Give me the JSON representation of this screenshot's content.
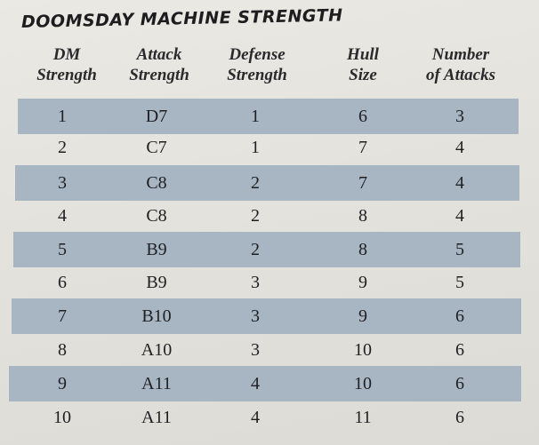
{
  "title": "DOOMSDAY MACHINE STRENGTH",
  "columns": [
    {
      "line1": "DM",
      "line2": "Strength"
    },
    {
      "line1": "Attack",
      "line2": "Strength"
    },
    {
      "line1": "Defense",
      "line2": "Strength"
    },
    {
      "line1": "Hull",
      "line2": "Size"
    },
    {
      "line1": "Number",
      "line2": "of Attacks"
    }
  ],
  "rows": [
    [
      "1",
      "D7",
      "1",
      "6",
      "3"
    ],
    [
      "2",
      "C7",
      "1",
      "7",
      "4"
    ],
    [
      "3",
      "C8",
      "2",
      "7",
      "4"
    ],
    [
      "4",
      "C8",
      "2",
      "8",
      "4"
    ],
    [
      "5",
      "B9",
      "2",
      "8",
      "5"
    ],
    [
      "6",
      "B9",
      "3",
      "9",
      "5"
    ],
    [
      "7",
      "B10",
      "3",
      "9",
      "6"
    ],
    [
      "8",
      "A10",
      "3",
      "10",
      "6"
    ],
    [
      "9",
      "A11",
      "4",
      "10",
      "6"
    ],
    [
      "10",
      "A11",
      "4",
      "11",
      "6"
    ]
  ],
  "colors": {
    "shaded_row": "#a8b6c4",
    "text": "#1f1f22"
  }
}
